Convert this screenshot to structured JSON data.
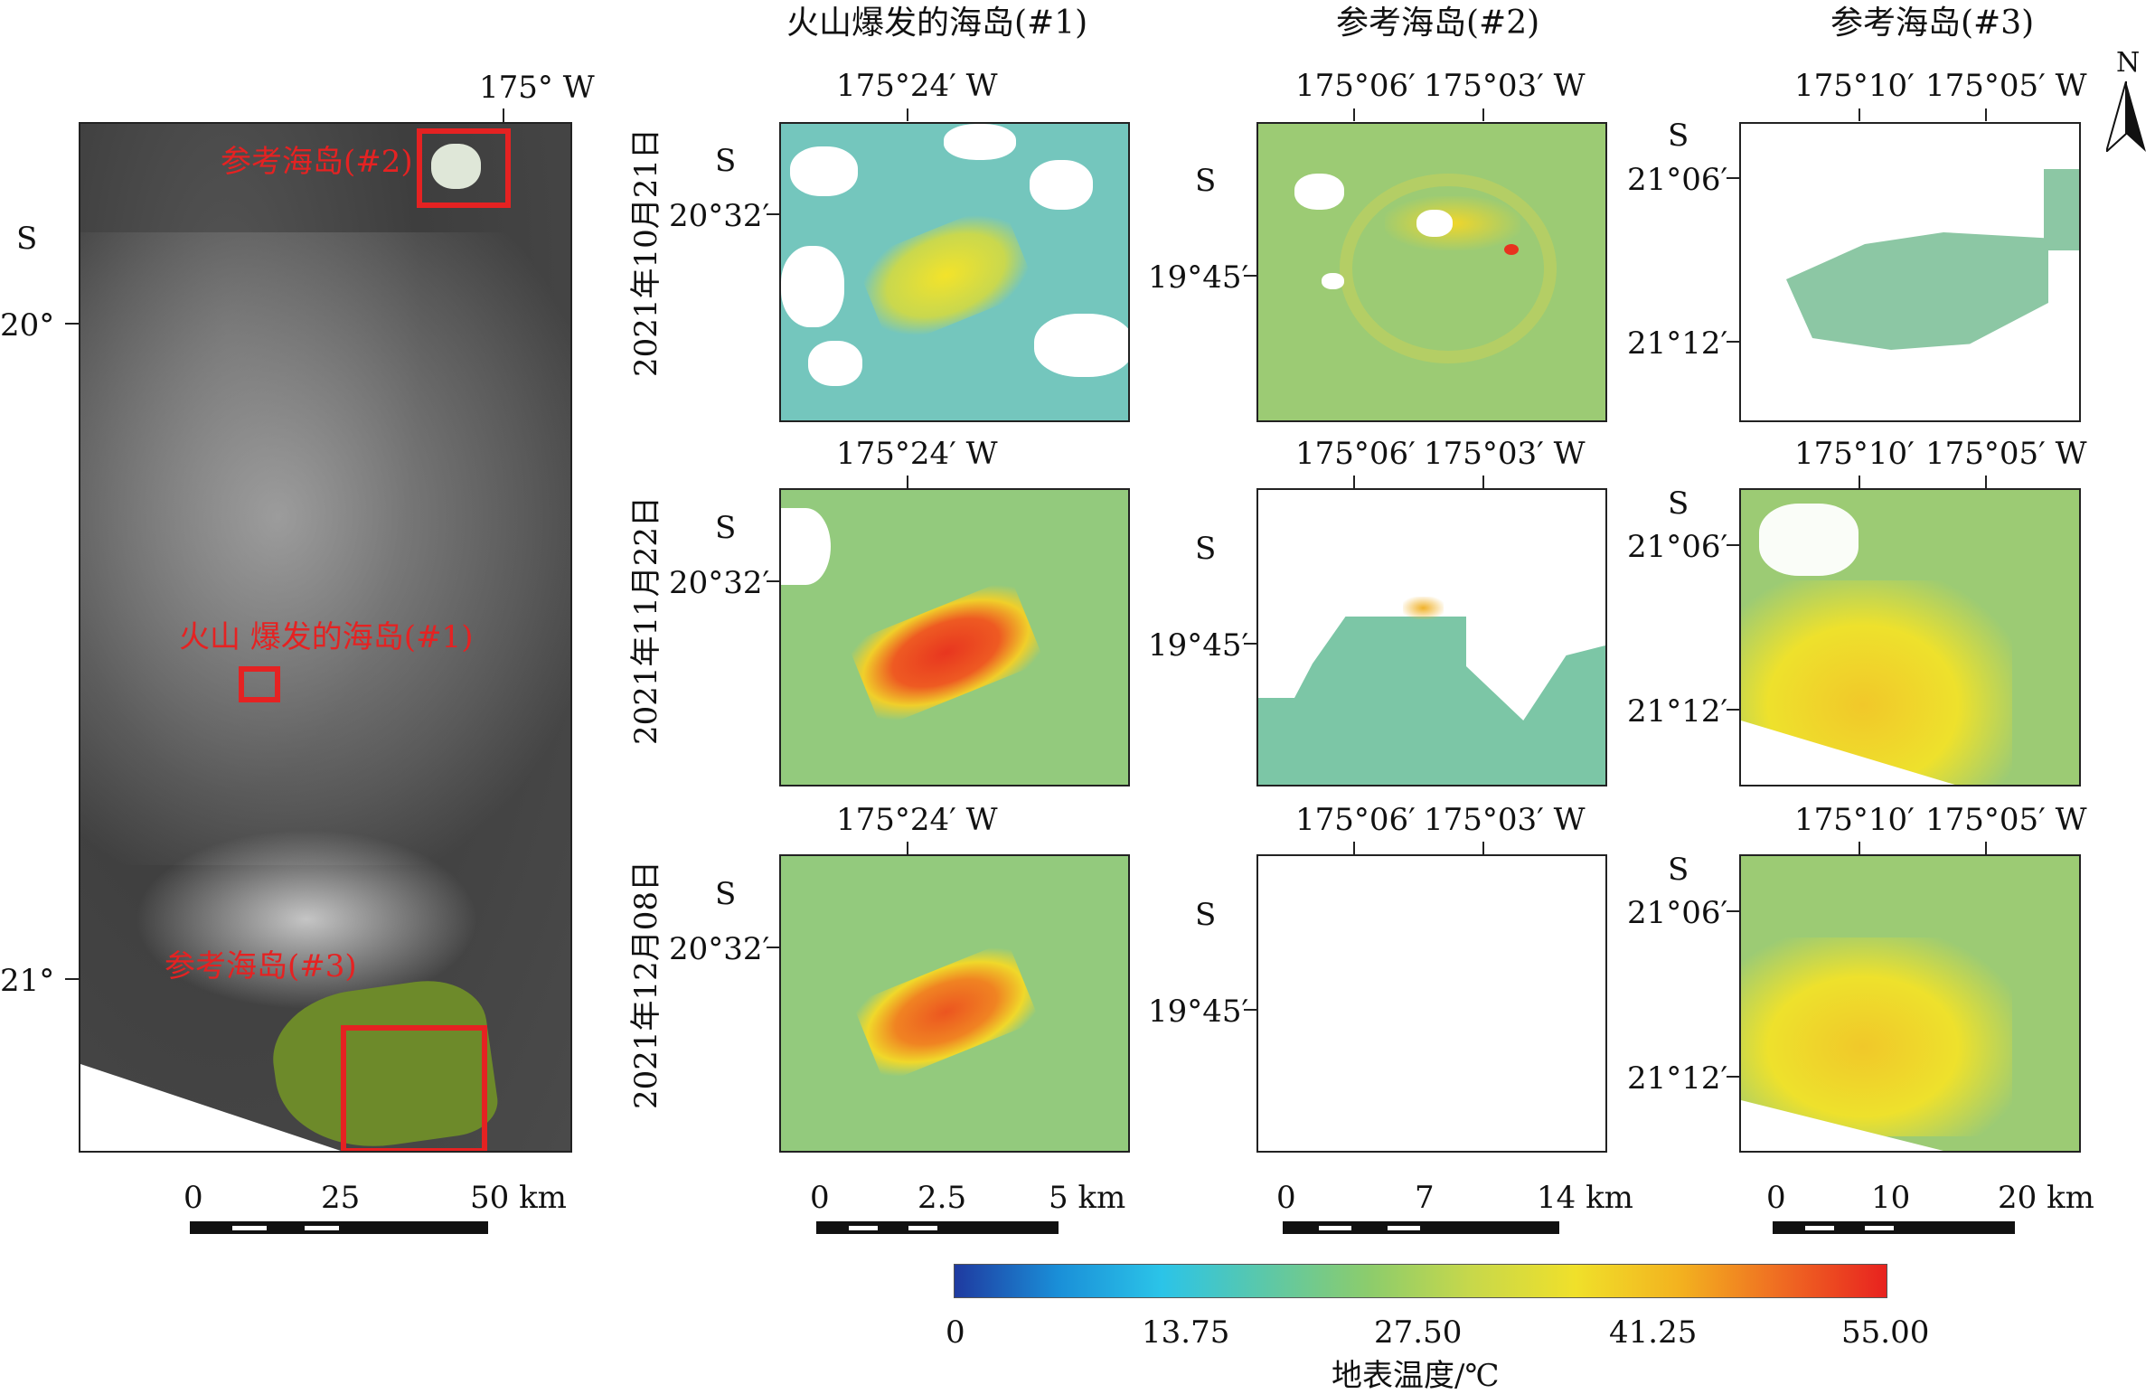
{
  "overview": {
    "lon_label": "175° W",
    "lat_hemisphere": "S",
    "lat_labels": [
      "20°",
      "21°"
    ],
    "boxes": [
      {
        "label": "参考海岛(#2)"
      },
      {
        "label": "火山 爆发的海岛(#1)"
      },
      {
        "label": "参考海岛(#3)"
      }
    ],
    "scale": {
      "ticks": [
        "0",
        "25",
        "50 km"
      ]
    }
  },
  "columns": [
    {
      "title": "火山爆发的海岛(#1)",
      "lon_labels": [
        "175°24′ W"
      ],
      "lat_hemisphere": "S",
      "lat_labels": [
        "20°32′"
      ],
      "scale_ticks": [
        "0",
        "2.5",
        "5 km"
      ]
    },
    {
      "title": "参考海岛(#2)",
      "lon_labels": [
        "175°06′",
        "175°03′ W"
      ],
      "lat_hemisphere": "S",
      "lat_labels": [
        "19°45′"
      ],
      "scale_ticks": [
        "0",
        "7",
        "14 km"
      ]
    },
    {
      "title": "参考海岛(#3)",
      "lon_labels": [
        "175°10′",
        "175°05′ W"
      ],
      "lat_hemisphere": "S",
      "lat_labels": [
        "21°06′",
        "21°12′"
      ],
      "scale_ticks": [
        "0",
        "10",
        "20 km"
      ]
    }
  ],
  "rows": [
    {
      "date": "2021年10月21日"
    },
    {
      "date": "2021年11月22日"
    },
    {
      "date": "2021年12月08日"
    }
  ],
  "north_arrow": {
    "label": "N"
  },
  "colorbar": {
    "ticks": [
      "0",
      "13.75",
      "27.50",
      "41.25",
      "55.00"
    ],
    "title": "地表温度/℃",
    "colors": [
      "#1f3aa0",
      "#1a8fd8",
      "#2bc4e8",
      "#5cc8a8",
      "#8ccc6c",
      "#c8d84a",
      "#f0e02a",
      "#f3b21f",
      "#ef6a22",
      "#e8221f"
    ]
  }
}
